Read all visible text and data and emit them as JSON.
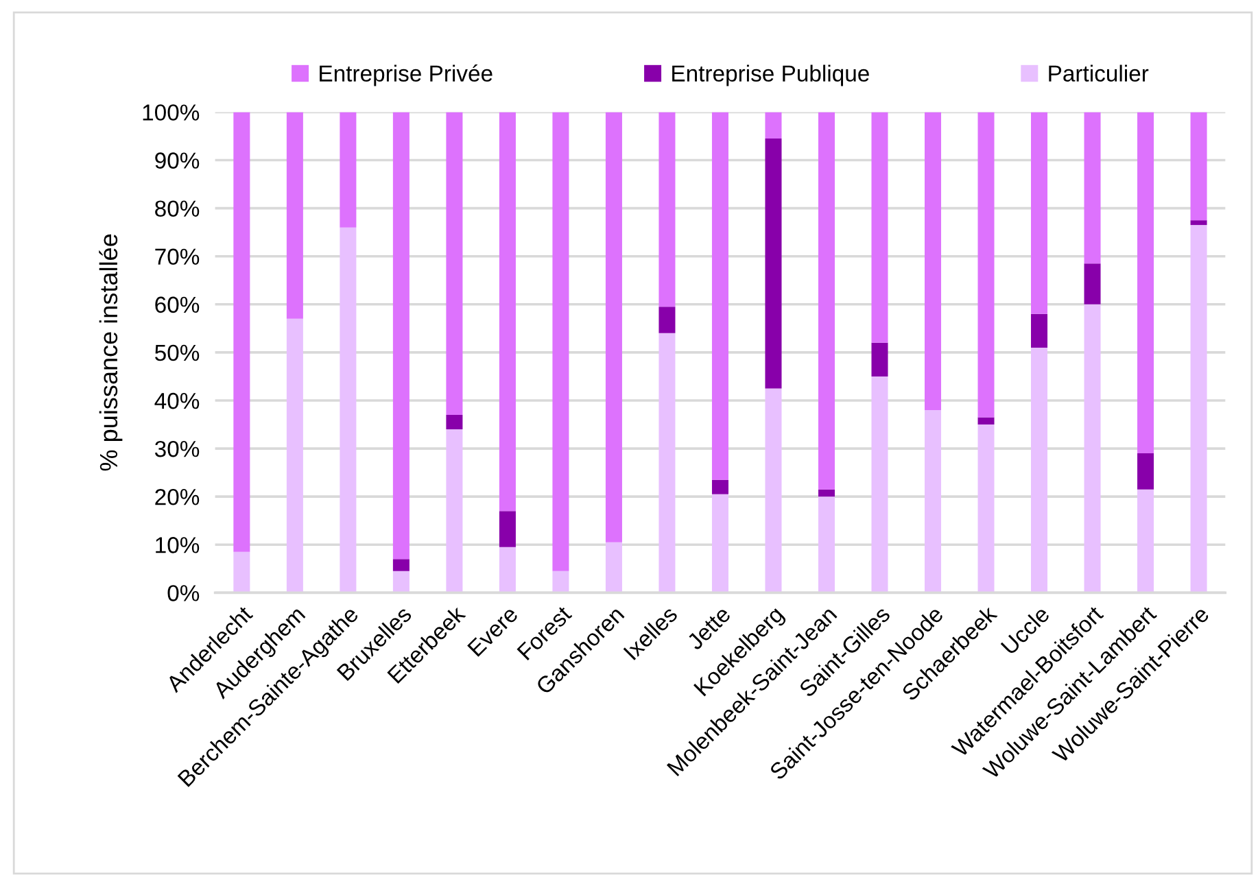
{
  "chart_data": {
    "type": "bar",
    "stacked": true,
    "ylabel": "% puissance installée",
    "categories": [
      "Anderlecht",
      "Auderghem",
      "Berchem-Sainte-Agathe",
      "Bruxelles",
      "Etterbeek",
      "Evere",
      "Forest",
      "Ganshoren",
      "Ixelles",
      "Jette",
      "Koekelberg",
      "Molenbeek-Saint-Jean",
      "Saint-Gilles",
      "Saint-Josse-ten-Noode",
      "Schaerbeek",
      "Uccle",
      "Watermael-Boitsfort",
      "Woluwe-Saint-Lambert",
      "Woluwe-Saint-Pierre"
    ],
    "series": [
      {
        "name": "Particulier",
        "color": "#e8c0ff",
        "values": [
          8.5,
          57,
          76,
          4.5,
          34,
          9.5,
          4.5,
          10.5,
          54,
          20.5,
          42.5,
          20,
          45,
          38,
          35,
          51,
          60,
          21.5,
          76.5
        ]
      },
      {
        "name": "Entreprise Publique",
        "color": "#8800aa",
        "values": [
          0,
          0,
          0,
          2.5,
          3,
          7.5,
          0,
          0,
          5.5,
          3,
          52,
          1.5,
          7,
          0,
          1.5,
          7,
          8.5,
          7.5,
          1
        ]
      },
      {
        "name": "Entreprise Privée",
        "color": "#dd72fd",
        "values": [
          91.5,
          43,
          24,
          93,
          63,
          83,
          95.5,
          89.5,
          40.5,
          76.5,
          5.5,
          78.5,
          48,
          62,
          63.5,
          42,
          31.5,
          71,
          22.5
        ]
      }
    ],
    "ylim": [
      0,
      100
    ],
    "yticks": [
      {
        "value": 0,
        "label": "0%"
      },
      {
        "value": 10,
        "label": "10%"
      },
      {
        "value": 20,
        "label": "20%"
      },
      {
        "value": 30,
        "label": "30%"
      },
      {
        "value": 40,
        "label": "40%"
      },
      {
        "value": 50,
        "label": "50%"
      },
      {
        "value": 60,
        "label": "60%"
      },
      {
        "value": 70,
        "label": "70%"
      },
      {
        "value": 80,
        "label": "80%"
      },
      {
        "value": 90,
        "label": "90%"
      },
      {
        "value": 100,
        "label": "100%"
      }
    ],
    "grid": "y",
    "legend": "top"
  }
}
